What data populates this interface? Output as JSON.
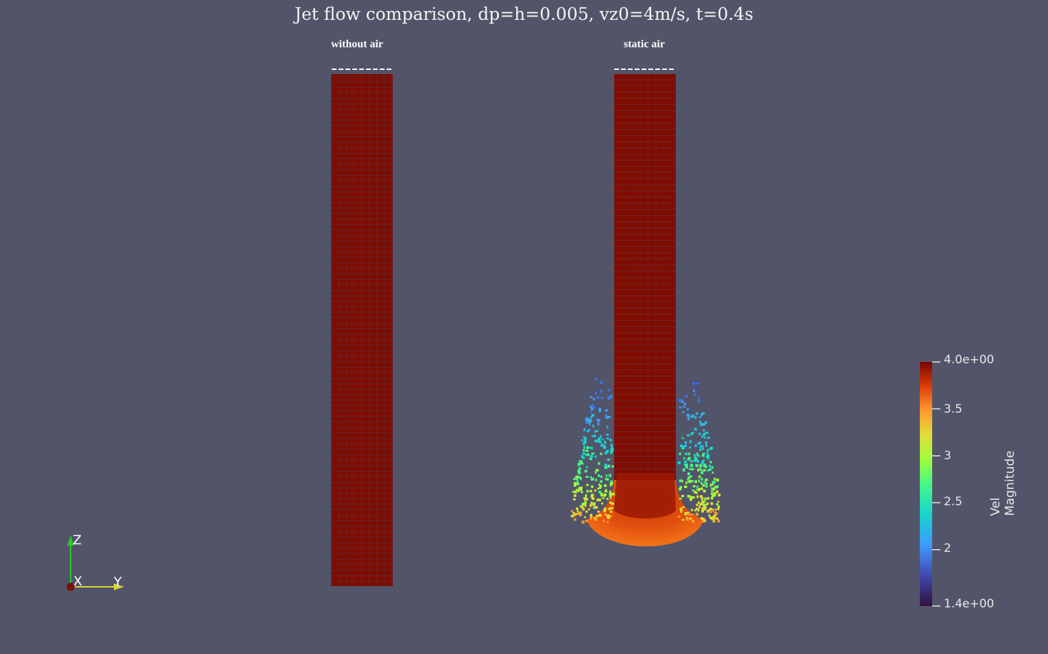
{
  "title": "Jet flow comparison, dp=h=0.005, vz0=4m/s, t=0.4s",
  "panels": {
    "left_label": "without air",
    "right_label": "static air"
  },
  "colorbar": {
    "title": "Vel Magnitude",
    "min_label": "1.4e+00",
    "max_label": "4.0e+00",
    "ticks": [
      {
        "label": "4.0e+00",
        "value": 4.0
      },
      {
        "label": "3.5",
        "value": 3.5
      },
      {
        "label": "3",
        "value": 3.0
      },
      {
        "label": "2.5",
        "value": 2.5
      },
      {
        "label": "2",
        "value": 2.0
      },
      {
        "label": "1.4e+00",
        "value": 1.4
      }
    ],
    "range": [
      1.4,
      4.0
    ]
  },
  "axes": {
    "z_label": "Z",
    "x_label": "X",
    "y_label": "Y"
  },
  "colors": {
    "background": "#525569",
    "jet": "#7e0c00",
    "z_axis": "#2fc62f",
    "y_axis": "#d8d83a",
    "x_axis": "#7a1010"
  }
}
